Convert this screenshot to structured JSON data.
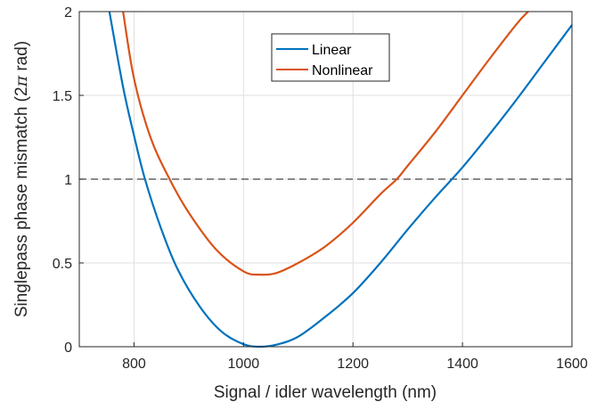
{
  "chart_data": {
    "type": "line",
    "title": "",
    "xlabel": "Signal / idler wavelength (nm)",
    "ylabel_main": "Singlepass phase mismatch (2",
    "ylabel_symbol": "π",
    "ylabel_tail": " rad)",
    "xlim": [
      700,
      1600
    ],
    "ylim": [
      0,
      2
    ],
    "xticks": [
      800,
      1000,
      1200,
      1400,
      1600
    ],
    "yticks": [
      0,
      0.5,
      1,
      1.5,
      2
    ],
    "xtick_labels": [
      "800",
      "1000",
      "1200",
      "1400",
      "1600"
    ],
    "ytick_labels": [
      "0",
      "0.5",
      "1",
      "1.5",
      "2"
    ],
    "grid": true,
    "legend_position": "top-center",
    "reference_line": {
      "y": 1,
      "style": "dashed",
      "color": "#444444"
    },
    "series": [
      {
        "name": "Linear",
        "color": "#0072BD",
        "x": [
          755,
          780,
          800,
          820,
          850,
          880,
          920,
          960,
          1000,
          1030,
          1060,
          1100,
          1150,
          1200,
          1250,
          1300,
          1350,
          1400,
          1450,
          1500,
          1550,
          1600
        ],
        "y": [
          2.0,
          1.55,
          1.26,
          1.0,
          0.7,
          0.46,
          0.24,
          0.09,
          0.015,
          0.0,
          0.012,
          0.06,
          0.18,
          0.32,
          0.5,
          0.7,
          0.89,
          1.07,
          1.27,
          1.48,
          1.7,
          1.92
        ]
      },
      {
        "name": "Nonlinear",
        "color": "#D95319",
        "x": [
          780,
          800,
          830,
          865,
          900,
          950,
          1000,
          1030,
          1060,
          1100,
          1150,
          1200,
          1250,
          1280,
          1300,
          1350,
          1400,
          1450,
          1500,
          1520
        ],
        "y": [
          2.0,
          1.6,
          1.25,
          1.0,
          0.8,
          0.58,
          0.45,
          0.43,
          0.44,
          0.5,
          0.6,
          0.74,
          0.91,
          1.0,
          1.08,
          1.28,
          1.5,
          1.72,
          1.93,
          2.0
        ]
      }
    ]
  }
}
